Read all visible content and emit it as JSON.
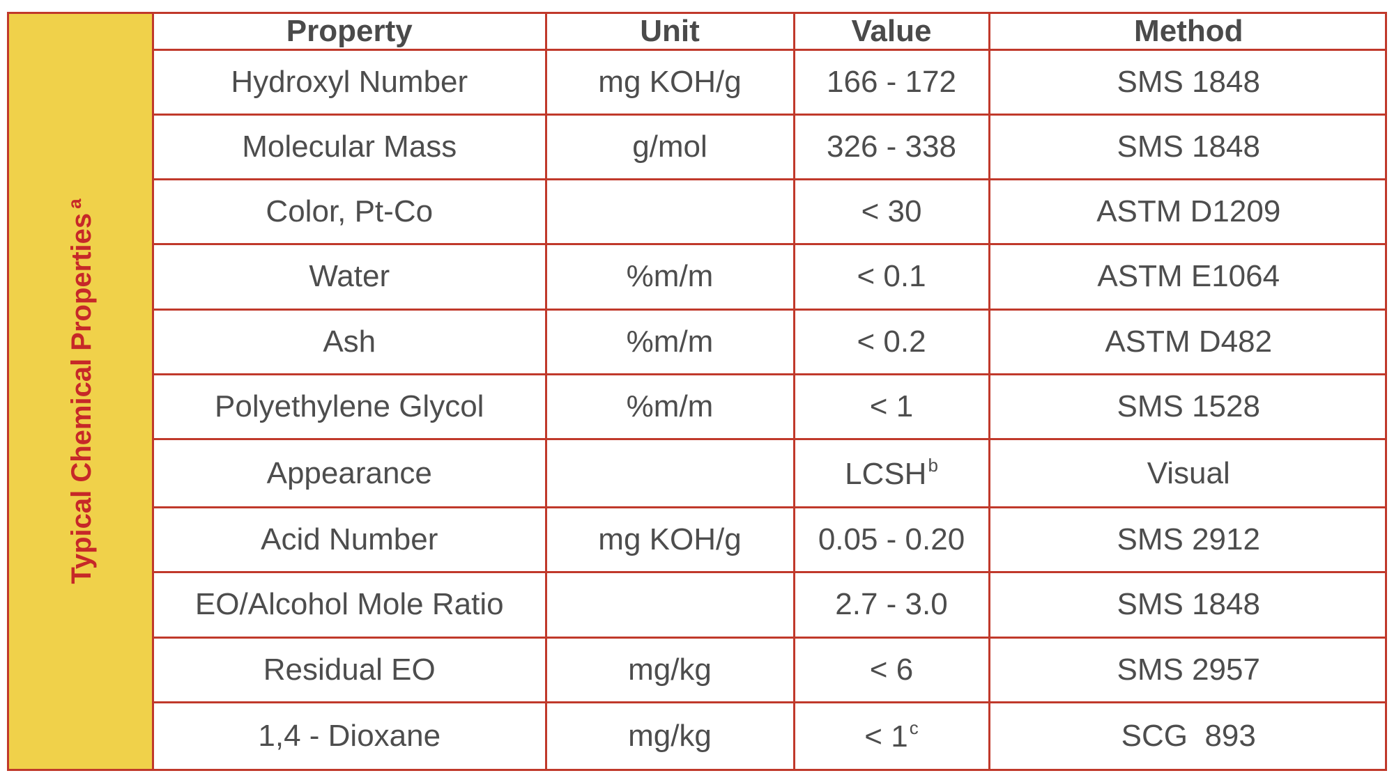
{
  "side_label": {
    "text": "Typical Chemical Properties",
    "footnote": "a"
  },
  "table": {
    "headers": [
      "Property",
      "Unit",
      "Value",
      "Method"
    ],
    "rows": [
      {
        "property": "Hydroxyl Number",
        "unit": "mg KOH/g",
        "value": "166 - 172",
        "value_note": "",
        "method": "SMS 1848"
      },
      {
        "property": "Molecular Mass",
        "unit": "g/mol",
        "value": "326 - 338",
        "value_note": "",
        "method": "SMS 1848"
      },
      {
        "property": "Color, Pt-Co",
        "unit": "",
        "value": "< 30",
        "value_note": "",
        "method": "ASTM D1209"
      },
      {
        "property": "Water",
        "unit": "%m/m",
        "value": "< 0.1",
        "value_note": "",
        "method": "ASTM E1064"
      },
      {
        "property": "Ash",
        "unit": "%m/m",
        "value": "< 0.2",
        "value_note": "",
        "method": "ASTM D482"
      },
      {
        "property": "Polyethylene Glycol",
        "unit": "%m/m",
        "value": "< 1",
        "value_note": "",
        "method": "SMS 1528"
      },
      {
        "property": "Appearance",
        "unit": "",
        "value": "LCSH",
        "value_note": "b",
        "method": "Visual"
      },
      {
        "property": "Acid Number",
        "unit": "mg KOH/g",
        "value": "0.05 - 0.20",
        "value_note": "",
        "method": "SMS 2912"
      },
      {
        "property": "EO/Alcohol Mole Ratio",
        "unit": "",
        "value": "2.7 - 3.0",
        "value_note": "",
        "method": "SMS 1848"
      },
      {
        "property": "Residual EO",
        "unit": "mg/kg",
        "value": "< 6",
        "value_note": "",
        "method": "SMS 2957"
      },
      {
        "property": "1,4 - Dioxane",
        "unit": "mg/kg",
        "value": "< 1",
        "value_note": "c",
        "method": "SCG  893"
      }
    ]
  },
  "colors": {
    "border": "#c0392b",
    "band": "#f0d14a",
    "band_text": "#c62828",
    "cell_text": "#4d4d4d"
  }
}
